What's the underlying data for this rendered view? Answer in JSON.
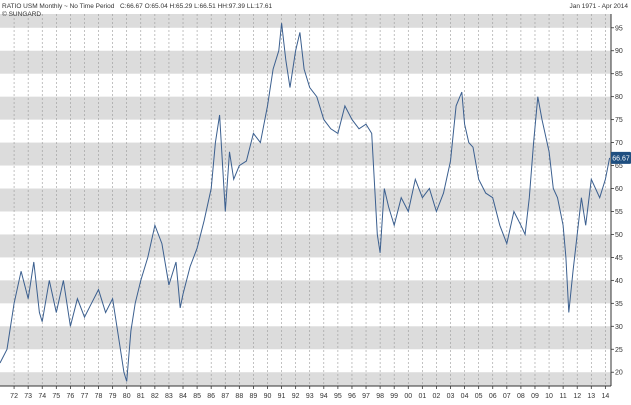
{
  "header": {
    "title": "RATIO USM Monthly ~ No Time Period",
    "ohlc": "C:66.67 O:65.04 H:65.29 L:66.51 HH:97.39 LL:17.61",
    "source": "© SUNGARD",
    "date_range": "Jan 1971 - Apr 2014"
  },
  "last_value_label": "66.67",
  "colors": {
    "line": "#3b5f8f",
    "band": "#dcdcdc",
    "grid": "#999999",
    "badge": "#1f4f80",
    "badge_text": "#ffffff",
    "axis": "#333333"
  },
  "chart_data": {
    "type": "line",
    "title": "RATIO USM Monthly ~ No Time Period",
    "xlabel": "",
    "ylabel": "",
    "x_ticks": [
      "72",
      "73",
      "74",
      "75",
      "76",
      "77",
      "78",
      "79",
      "80",
      "81",
      "82",
      "83",
      "84",
      "85",
      "86",
      "87",
      "88",
      "89",
      "90",
      "91",
      "92",
      "93",
      "94",
      "95",
      "96",
      "97",
      "98",
      "99",
      "00",
      "01",
      "02",
      "03",
      "04",
      "05",
      "06",
      "07",
      "08",
      "09",
      "10",
      "11",
      "12",
      "13",
      "14"
    ],
    "y_ticks": [
      20,
      25,
      30,
      35,
      40,
      45,
      50,
      55,
      60,
      65,
      70,
      75,
      80,
      85,
      90,
      95
    ],
    "xlim": [
      1971.0,
      2014.4
    ],
    "ylim": [
      17,
      98
    ],
    "grid": true,
    "series": [
      {
        "x": [
          1971.0,
          1971.5,
          1972.0,
          1972.5,
          1973.0,
          1973.4,
          1973.8,
          1974.0,
          1974.5,
          1975.0,
          1975.5,
          1976.0,
          1976.5,
          1977.0,
          1977.5,
          1978.0,
          1978.5,
          1979.0,
          1979.5,
          1979.8,
          1980.0,
          1980.3,
          1980.6,
          1981.0,
          1981.5,
          1982.0,
          1982.5,
          1983.0,
          1983.5,
          1983.8,
          1984.0,
          1984.5,
          1985.0,
          1985.5,
          1986.0,
          1986.3,
          1986.6,
          1987.0,
          1987.3,
          1987.6,
          1988.0,
          1988.5,
          1989.0,
          1989.5,
          1990.0,
          1990.4,
          1990.8,
          1991.0,
          1991.3,
          1991.6,
          1992.0,
          1992.3,
          1992.6,
          1993.0,
          1993.5,
          1994.0,
          1994.5,
          1995.0,
          1995.5,
          1996.0,
          1996.5,
          1997.0,
          1997.4,
          1997.8,
          1998.0,
          1998.3,
          1998.6,
          1999.0,
          1999.5,
          2000.0,
          2000.5,
          2001.0,
          2001.5,
          2002.0,
          2002.5,
          2003.0,
          2003.4,
          2003.8,
          2004.0,
          2004.3,
          2004.6,
          2005.0,
          2005.5,
          2006.0,
          2006.5,
          2007.0,
          2007.5,
          2008.0,
          2008.3,
          2008.6,
          2008.9,
          2009.2,
          2009.5,
          2010.0,
          2010.3,
          2010.6,
          2011.0,
          2011.2,
          2011.4,
          2011.7,
          2012.0,
          2012.3,
          2012.6,
          2013.0,
          2013.3,
          2013.6,
          2014.0,
          2014.3
        ],
        "y": [
          22,
          25,
          35,
          42,
          36,
          44,
          33,
          31,
          40,
          33,
          40,
          30,
          36,
          32,
          35,
          38,
          33,
          36,
          26,
          20,
          18,
          29,
          35,
          40,
          45,
          52,
          48,
          39,
          44,
          34,
          37,
          43,
          47,
          53,
          60,
          70,
          76,
          55,
          68,
          62,
          65,
          66,
          72,
          70,
          78,
          86,
          90,
          96,
          88,
          82,
          90,
          94,
          86,
          82,
          80,
          75,
          73,
          72,
          78,
          75,
          73,
          74,
          72,
          50,
          46,
          60,
          56,
          52,
          58,
          55,
          62,
          58,
          60,
          55,
          59,
          66,
          78,
          81,
          74,
          70,
          69,
          62,
          59,
          58,
          52,
          48,
          55,
          52,
          50,
          58,
          70,
          80,
          75,
          68,
          60,
          58,
          52,
          45,
          33,
          42,
          50,
          58,
          52,
          62,
          60,
          58,
          62,
          66.67
        ],
        "line_width": 1
      }
    ]
  }
}
